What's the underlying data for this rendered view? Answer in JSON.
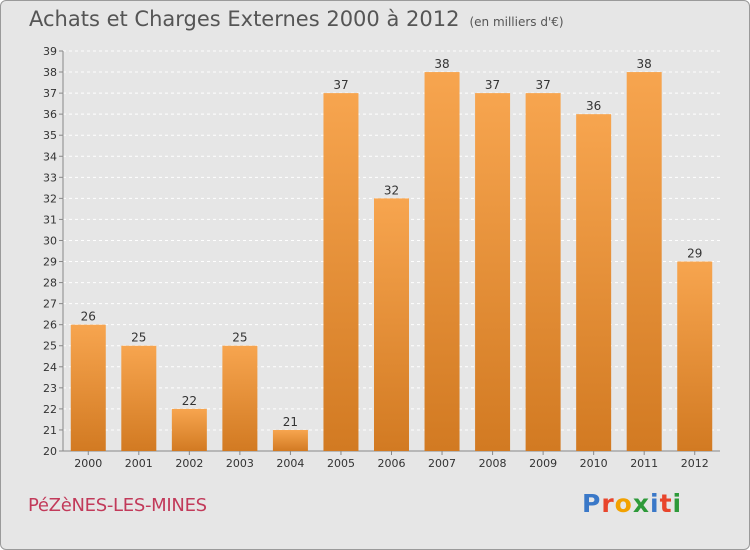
{
  "header": {
    "title": "Achats et Charges Externes 2000 à 2012",
    "subtitle": "(en milliers d'€)"
  },
  "footer": {
    "commune": "PéZèNES-LES-MINES",
    "logo": "Proxiti"
  },
  "colors": {
    "bar_light": "#f7a54f",
    "bar_dark": "#d27a22",
    "background": "#e6e6e6",
    "grid": "#ffffff",
    "commune": "#c23a5a"
  },
  "chart_data": {
    "type": "bar",
    "title": "Achats et Charges Externes 2000 à 2012",
    "subtitle": "(en milliers d'€)",
    "categories": [
      "2000",
      "2001",
      "2002",
      "2003",
      "2004",
      "2005",
      "2006",
      "2007",
      "2008",
      "2009",
      "2010",
      "2011",
      "2012"
    ],
    "values": [
      26,
      25,
      22,
      25,
      21,
      37,
      32,
      38,
      37,
      37,
      36,
      38,
      29
    ],
    "ylim": [
      20,
      39
    ],
    "yticks": [
      20,
      21,
      22,
      23,
      24,
      25,
      26,
      27,
      28,
      29,
      30,
      31,
      32,
      33,
      34,
      35,
      36,
      37,
      38,
      39
    ],
    "grid": true,
    "data_labels": true
  }
}
